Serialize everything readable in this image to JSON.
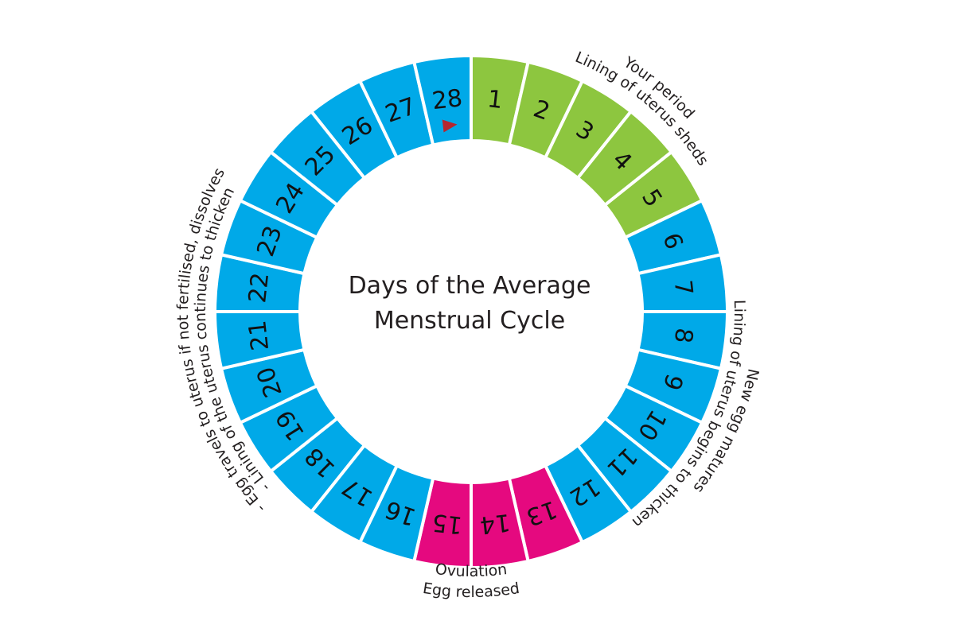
{
  "title": {
    "line1": "Days of the Average",
    "line2": "Menstrual Cycle"
  },
  "colors": {
    "period": "#8dc63f",
    "ovulation": "#e5097f",
    "other": "#00a9e8",
    "marker": "#b5262f",
    "separator": "#ffffff"
  },
  "days": [
    {
      "label": "1",
      "phase": "period"
    },
    {
      "label": "2",
      "phase": "period"
    },
    {
      "label": "3",
      "phase": "period"
    },
    {
      "label": "4",
      "phase": "period"
    },
    {
      "label": "5",
      "phase": "period"
    },
    {
      "label": "6",
      "phase": "other"
    },
    {
      "label": "7",
      "phase": "other"
    },
    {
      "label": "8",
      "phase": "other"
    },
    {
      "label": "9",
      "phase": "other"
    },
    {
      "label": "10",
      "phase": "other"
    },
    {
      "label": "11",
      "phase": "other"
    },
    {
      "label": "12",
      "phase": "other"
    },
    {
      "label": "13",
      "phase": "ovulation"
    },
    {
      "label": "14",
      "phase": "ovulation"
    },
    {
      "label": "15",
      "phase": "ovulation"
    },
    {
      "label": "16",
      "phase": "other"
    },
    {
      "label": "17",
      "phase": "other"
    },
    {
      "label": "18",
      "phase": "other"
    },
    {
      "label": "19",
      "phase": "other"
    },
    {
      "label": "20",
      "phase": "other"
    },
    {
      "label": "21",
      "phase": "other"
    },
    {
      "label": "22",
      "phase": "other"
    },
    {
      "label": "23",
      "phase": "other"
    },
    {
      "label": "24",
      "phase": "other"
    },
    {
      "label": "25",
      "phase": "other"
    },
    {
      "label": "26",
      "phase": "other"
    },
    {
      "label": "27",
      "phase": "other"
    },
    {
      "label": "28",
      "phase": "other",
      "marker": "triangle-marker"
    }
  ],
  "labels": {
    "period_line1": "Your period",
    "period_line2": "Lining of uterus sheds",
    "follicular_line1": "Lining of uterus begins to thicken",
    "follicular_line2": "New egg matures",
    "ovulation_line1": "Ovulation",
    "ovulation_line2": "Egg released",
    "luteal_line1": "- Egg travels to uterus if not fertilised, dissolves",
    "luteal_line2": "- Lining of the uterus continues to thicken"
  }
}
